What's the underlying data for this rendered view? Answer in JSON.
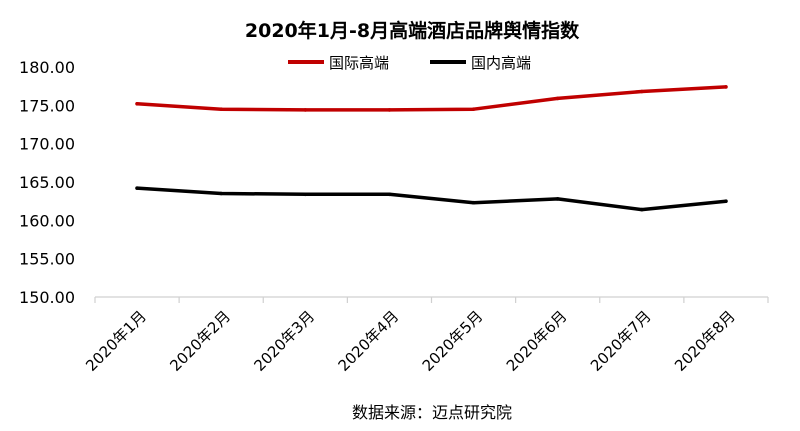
{
  "chart_data": {
    "type": "line",
    "title": "2020年1月-8月高端酒店品牌舆情指数",
    "categories": [
      "2020年1月",
      "2020年2月",
      "2020年3月",
      "2020年4月",
      "2020年5月",
      "2020年6月",
      "2020年7月",
      "2020年8月"
    ],
    "series": [
      {
        "name": "国际高端",
        "color": "#c00000",
        "values": [
          175.2,
          174.5,
          174.4,
          174.4,
          174.5,
          175.9,
          176.8,
          177.4
        ]
      },
      {
        "name": "国内高端",
        "color": "#000000",
        "values": [
          164.2,
          163.5,
          163.4,
          163.4,
          162.3,
          162.8,
          161.4,
          162.5
        ]
      }
    ],
    "ylim": [
      150,
      180
    ],
    "yticks": [
      "150.00",
      "155.00",
      "160.00",
      "165.00",
      "170.00",
      "175.00",
      "180.00"
    ],
    "grid": false,
    "legend": "top-center"
  },
  "source": "数据来源：迈点研究院"
}
